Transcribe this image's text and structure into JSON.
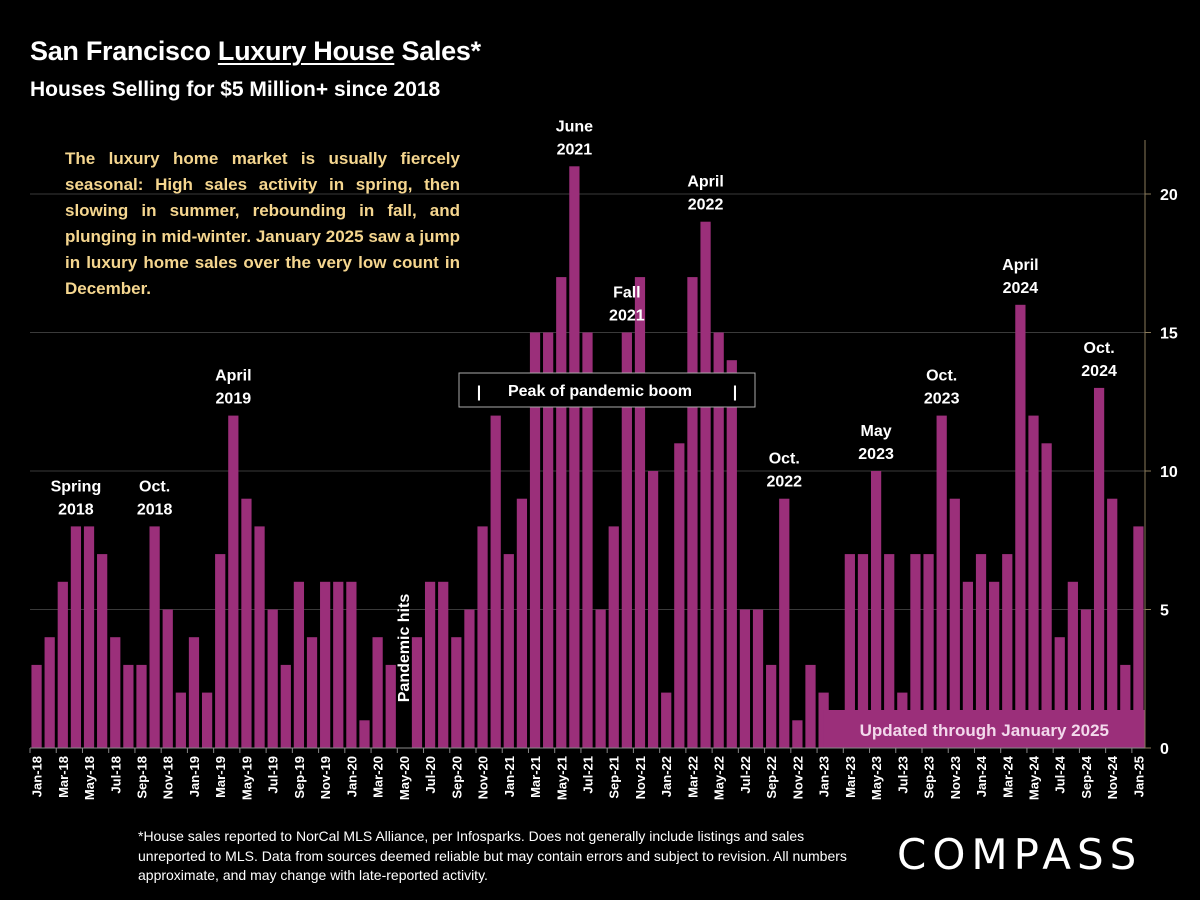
{
  "header": {
    "title_prefix": "San Francisco ",
    "title_underlined": "Luxury House",
    "title_suffix": " Sales*",
    "subtitle": "Houses Selling for $5 Million+ since 2018"
  },
  "description": "The luxury home market is usually fiercely seasonal:  High sales activity in spring, then slowing in summer, rebounding in fall, and plunging in mid-winter. January 2025 saw a jump in luxury home sales over the very low count in December.",
  "footnote": "*House sales reported to NorCal MLS Alliance, per Infosparks. Does not generally include listings and sales unreported to MLS. Data from sources deemed reliable but may contain errors and subject to revision.  All numbers approximate, and may change with late-reported activity.",
  "logo": "COMPASS",
  "colors": {
    "bar": "#9b2f7a",
    "background": "#000000",
    "note": "#f5d68f",
    "axis": "#8a7a5a"
  },
  "chart_data": {
    "type": "bar",
    "title": "San Francisco Luxury House Sales*",
    "subtitle": "Houses Selling for $5 Million+ since 2018",
    "xlabel": "",
    "ylabel": "",
    "ylim": [
      0,
      22
    ],
    "yticks": [
      0,
      5,
      10,
      15,
      20
    ],
    "y_axis_side": "right",
    "grid": true,
    "categories": [
      "Jan-18",
      "Feb-18",
      "Mar-18",
      "Apr-18",
      "May-18",
      "Jun-18",
      "Jul-18",
      "Aug-18",
      "Sep-18",
      "Oct-18",
      "Nov-18",
      "Dec-18",
      "Jan-19",
      "Feb-19",
      "Mar-19",
      "Apr-19",
      "May-19",
      "Jun-19",
      "Jul-19",
      "Aug-19",
      "Sep-19",
      "Oct-19",
      "Nov-19",
      "Dec-19",
      "Jan-20",
      "Feb-20",
      "Mar-20",
      "Apr-20",
      "May-20",
      "Jun-20",
      "Jul-20",
      "Aug-20",
      "Sep-20",
      "Oct-20",
      "Nov-20",
      "Dec-20",
      "Jan-21",
      "Feb-21",
      "Mar-21",
      "Apr-21",
      "May-21",
      "Jun-21",
      "Jul-21",
      "Aug-21",
      "Sep-21",
      "Oct-21",
      "Nov-21",
      "Dec-21",
      "Jan-22",
      "Feb-22",
      "Mar-22",
      "Apr-22",
      "May-22",
      "Jun-22",
      "Jul-22",
      "Aug-22",
      "Sep-22",
      "Oct-22",
      "Nov-22",
      "Dec-22",
      "Jan-23",
      "Feb-23",
      "Mar-23",
      "Apr-23",
      "May-23",
      "Jun-23",
      "Jul-23",
      "Aug-23",
      "Sep-23",
      "Oct-23",
      "Nov-23",
      "Dec-23",
      "Jan-24",
      "Feb-24",
      "Mar-24",
      "Apr-24",
      "May-24",
      "Jun-24",
      "Jul-24",
      "Aug-24",
      "Sep-24",
      "Oct-24",
      "Nov-24",
      "Dec-24",
      "Jan-25"
    ],
    "shown_tick_labels": [
      "Jan-18",
      "Mar-18",
      "May-18",
      "Jul-18",
      "Sep-18",
      "Nov-18",
      "Jan-19",
      "Mar-19",
      "May-19",
      "Jul-19",
      "Sep-19",
      "Nov-19",
      "Jan-20",
      "Mar-20",
      "May-20",
      "Jul-20",
      "Sep-20",
      "Nov-20",
      "Jan-21",
      "Mar-21",
      "May-21",
      "Jul-21",
      "Sep-21",
      "Nov-21",
      "Jan-22",
      "Mar-22",
      "May-22",
      "Jul-22",
      "Sep-22",
      "Nov-22",
      "Jan-23",
      "Mar-23",
      "May-23",
      "Jul-23",
      "Sep-23",
      "Nov-23",
      "Jan-24",
      "Mar-24",
      "May-24",
      "Jul-24",
      "Sep-24",
      "Nov-24",
      "Jan-25"
    ],
    "series": [
      {
        "name": "Luxury house sales",
        "values": [
          3,
          4,
          6,
          8,
          8,
          7,
          4,
          3,
          3,
          8,
          5,
          2,
          4,
          2,
          7,
          12,
          9,
          8,
          5,
          3,
          6,
          4,
          6,
          6,
          6,
          1,
          4,
          3,
          0,
          4,
          6,
          6,
          4,
          5,
          8,
          12,
          7,
          9,
          15,
          15,
          17,
          21,
          15,
          5,
          8,
          15,
          17,
          10,
          2,
          11,
          17,
          19,
          15,
          14,
          5,
          5,
          3,
          9,
          1,
          3,
          2,
          1,
          7,
          7,
          10,
          7,
          2,
          7,
          7,
          12,
          9,
          6,
          7,
          6,
          7,
          16,
          12,
          11,
          4,
          6,
          5,
          13,
          9,
          3,
          8
        ]
      }
    ],
    "annotations": [
      {
        "text": [
          "Spring",
          "2018"
        ],
        "at": "Apr-18"
      },
      {
        "text": [
          "Oct.",
          "2018"
        ],
        "at": "Oct-18"
      },
      {
        "text": [
          "April",
          "2019"
        ],
        "at": "Apr-19"
      },
      {
        "text": [
          "Pandemic hits"
        ],
        "at": "May-20",
        "rotated": true
      },
      {
        "text": [
          "June",
          "2021"
        ],
        "at": "Jun-21"
      },
      {
        "text": [
          "Fall",
          "2021"
        ],
        "at": "Oct-21"
      },
      {
        "text": [
          "April",
          "2022"
        ],
        "at": "Apr-22"
      },
      {
        "text": [
          "Oct.",
          "2022"
        ],
        "at": "Oct-22"
      },
      {
        "text": [
          "May",
          "2023"
        ],
        "at": "May-23"
      },
      {
        "text": [
          "Oct.",
          "2023"
        ],
        "at": "Oct-23"
      },
      {
        "text": [
          "April",
          "2024"
        ],
        "at": "Apr-24"
      },
      {
        "text": [
          "Oct.",
          "2024"
        ],
        "at": "Oct-24"
      }
    ],
    "boxed_annotation": {
      "text": "Peak of pandemic boom",
      "from": "Nov-20",
      "to": "Jun-22"
    },
    "banner": "Updated through January 2025"
  }
}
